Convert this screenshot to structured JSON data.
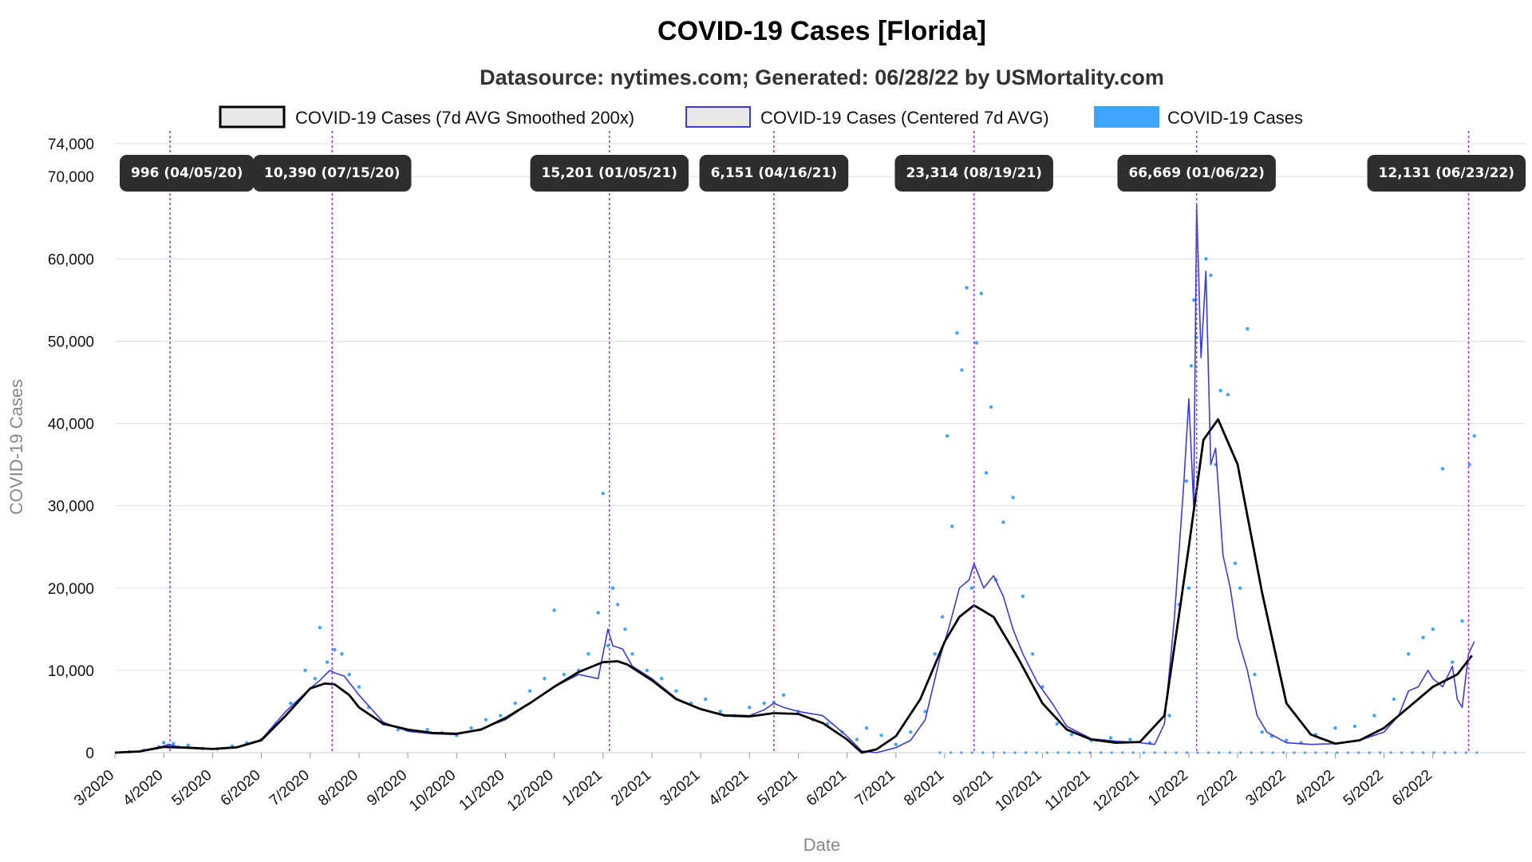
{
  "chart_data": {
    "type": "line",
    "title": "COVID-19 Cases [Florida]",
    "subtitle": "Datasource: nytimes.com; Generated: 06/28/22 by USMortality.com",
    "xlabel": "Date",
    "ylabel": "COVID-19 Cases",
    "ylim": [
      0,
      74000
    ],
    "y_ticks": [
      "0",
      "10,000",
      "20,000",
      "30,000",
      "40,000",
      "50,000",
      "60,000",
      "70,000",
      "74,000"
    ],
    "y_tick_values": [
      0,
      10000,
      20000,
      30000,
      40000,
      50000,
      60000,
      70000,
      74000
    ],
    "x_range_months": [
      0,
      28.9
    ],
    "x_ticks": [
      "3/2020",
      "4/2020",
      "5/2020",
      "6/2020",
      "7/2020",
      "8/2020",
      "9/2020",
      "10/2020",
      "11/2020",
      "12/2020",
      "1/2021",
      "2/2021",
      "3/2021",
      "4/2021",
      "5/2021",
      "6/2021",
      "7/2021",
      "8/2021",
      "9/2021",
      "10/2021",
      "11/2021",
      "12/2021",
      "1/2022",
      "2/2022",
      "3/2022",
      "4/2022",
      "5/2022",
      "6/2022"
    ],
    "x_tick_months": [
      0,
      1,
      2,
      3,
      4,
      5,
      6,
      7,
      8,
      9,
      10,
      11,
      12,
      13,
      14,
      15,
      16,
      17,
      18,
      19,
      20,
      21,
      22,
      23,
      24,
      25,
      26,
      27
    ],
    "grid": true,
    "legend": {
      "position": "top",
      "entries": [
        {
          "label": "COVID-19 Cases (7d AVG Smoothed 200x)",
          "color": "#000000",
          "fill": "#e8e8e8"
        },
        {
          "label": "COVID-19 Cases (Centered 7d AVG)",
          "color": "#3b3bdb",
          "fill": "#e8e8e8"
        },
        {
          "label": "COVID-19 Cases",
          "color": "#3da4ff",
          "fill": "#3da4ff"
        }
      ]
    },
    "colors": {
      "smoothed": "#000000",
      "centered": "#3b3bdb",
      "daily": "#3da4ff",
      "annotation_line": "#9b30ff",
      "annotation_box": "#2e2e2e"
    },
    "annotations": [
      {
        "label": "996 (04/05/20)",
        "month": 1.13
      },
      {
        "label": "10,390 (07/15/20)",
        "month": 4.45
      },
      {
        "label": "15,201 (01/05/21)",
        "month": 10.13
      },
      {
        "label": "6,151 (04/16/21)",
        "month": 13.5
      },
      {
        "label": "23,314 (08/19/21)",
        "month": 17.6
      },
      {
        "label": "66,669 (01/06/22)",
        "month": 22.16
      },
      {
        "label": "12,131 (06/23/22)",
        "month": 27.73
      }
    ],
    "series": [
      {
        "name": "COVID-19 Cases (7d AVG Smoothed 200x)",
        "x": [
          0,
          0.5,
          1,
          1.5,
          2,
          2.5,
          3,
          3.5,
          4,
          4.3,
          4.5,
          4.8,
          5,
          5.5,
          6,
          6.5,
          7,
          7.5,
          8,
          8.5,
          9,
          9.5,
          10,
          10.3,
          10.5,
          11,
          11.5,
          12,
          12.5,
          13,
          13.5,
          14,
          14.5,
          15,
          15.3,
          15.6,
          16,
          16.5,
          17,
          17.3,
          17.6,
          18,
          18.5,
          19,
          19.5,
          20,
          20.5,
          21,
          21.5,
          22,
          22.3,
          22.6,
          23,
          23.5,
          24,
          24.5,
          25,
          25.5,
          26,
          26.5,
          27,
          27.5,
          27.8
        ],
        "y": [
          0,
          150,
          700,
          600,
          450,
          650,
          1500,
          4500,
          7800,
          8400,
          8300,
          7000,
          5500,
          3500,
          2800,
          2400,
          2300,
          2800,
          4200,
          6000,
          8000,
          9800,
          11000,
          11100,
          10700,
          8800,
          6500,
          5300,
          4500,
          4400,
          4800,
          4700,
          3600,
          1600,
          0,
          400,
          2000,
          6500,
          13500,
          16500,
          17900,
          16500,
          11500,
          6000,
          2800,
          1600,
          1200,
          1300,
          4500,
          25000,
          38000,
          40500,
          35000,
          19500,
          6000,
          2200,
          1100,
          1500,
          3000,
          5500,
          8000,
          9500,
          11800
        ]
      },
      {
        "name": "COVID-19 Cases (Centered 7d AVG)",
        "x": [
          0,
          0.5,
          1,
          1.1,
          1.3,
          1.5,
          2,
          2.5,
          3,
          3.5,
          4,
          4.2,
          4.4,
          4.5,
          4.7,
          5,
          5.5,
          6,
          6.5,
          7,
          7.5,
          8,
          8.5,
          9,
          9.5,
          9.9,
          10.1,
          10.2,
          10.4,
          10.6,
          11,
          11.5,
          12,
          12.5,
          13,
          13.3,
          13.5,
          13.7,
          14,
          14.5,
          15,
          15.3,
          15.6,
          16,
          16.3,
          16.6,
          16.9,
          17.1,
          17.3,
          17.5,
          17.6,
          17.8,
          18,
          18.2,
          18.4,
          18.6,
          18.9,
          19.2,
          19.5,
          20,
          20.5,
          21,
          21.3,
          21.5,
          21.7,
          21.9,
          22,
          22.1,
          22.16,
          22.25,
          22.35,
          22.45,
          22.55,
          22.7,
          22.85,
          23,
          23.2,
          23.4,
          23.6,
          24,
          24.5,
          25,
          25.5,
          26,
          26.3,
          26.5,
          26.7,
          26.9,
          27,
          27.2,
          27.4,
          27.5,
          27.6,
          27.73,
          27.85
        ],
        "y": [
          0,
          150,
          800,
          1000,
          700,
          550,
          420,
          700,
          1600,
          5000,
          7800,
          8800,
          10000,
          9700,
          9300,
          7000,
          3700,
          2600,
          2300,
          2200,
          2900,
          4000,
          6000,
          8000,
          9500,
          9000,
          15000,
          13000,
          12600,
          10500,
          9000,
          6600,
          5300,
          4600,
          4500,
          5200,
          6000,
          5500,
          5000,
          4500,
          2000,
          200,
          0,
          600,
          1500,
          4000,
          11500,
          15500,
          20000,
          21000,
          23000,
          20000,
          21500,
          19000,
          15000,
          12000,
          8500,
          6000,
          3200,
          1700,
          1400,
          1200,
          1000,
          3500,
          16000,
          33000,
          43000,
          30000,
          66500,
          48000,
          58500,
          35000,
          37000,
          24000,
          20000,
          14000,
          10000,
          4500,
          2500,
          1200,
          1000,
          1100,
          1500,
          2500,
          4500,
          7500,
          8000,
          10000,
          9000,
          8000,
          10500,
          6500,
          5500,
          12000,
          13500
        ]
      },
      {
        "name": "COVID-19 Cases",
        "x": [
          0.3,
          0.6,
          0.9,
          1.0,
          1.1,
          1.2,
          1.3,
          1.5,
          1.8,
          2.1,
          2.4,
          2.7,
          3.0,
          3.3,
          3.6,
          3.9,
          4.1,
          4.2,
          4.35,
          4.5,
          4.65,
          4.8,
          5.0,
          5.2,
          5.5,
          5.8,
          6.1,
          6.4,
          6.7,
          7.0,
          7.3,
          7.6,
          7.9,
          8.2,
          8.5,
          8.8,
          9.0,
          9.2,
          9.5,
          9.7,
          9.9,
          10.0,
          10.1,
          10.2,
          10.3,
          10.45,
          10.6,
          10.9,
          11.2,
          11.5,
          11.8,
          12.1,
          12.4,
          12.7,
          13.0,
          13.3,
          13.5,
          13.7,
          14.0,
          14.3,
          14.6,
          14.9,
          15.2,
          15.4,
          15.7,
          16.0,
          16.3,
          16.6,
          16.8,
          16.95,
          17.05,
          17.15,
          17.25,
          17.35,
          17.45,
          17.55,
          17.65,
          17.75,
          17.85,
          17.95,
          18.05,
          18.2,
          18.4,
          18.6,
          18.8,
          19.0,
          19.3,
          19.6,
          20.0,
          20.4,
          20.8,
          21.2,
          21.6,
          21.8,
          21.95,
          22.0,
          22.05,
          22.1,
          22.15,
          22.25,
          22.35,
          22.45,
          22.55,
          22.65,
          22.8,
          22.95,
          23.05,
          23.2,
          23.35,
          23.5,
          23.7,
          24.0,
          24.3,
          24.6,
          25.0,
          25.4,
          25.8,
          26.2,
          26.5,
          26.8,
          27.0,
          27.2,
          27.4,
          27.6,
          27.75,
          27.85
        ],
        "y": [
          100,
          300,
          700,
          1200,
          900,
          1100,
          700,
          900,
          500,
          450,
          800,
          1200,
          1600,
          3500,
          6000,
          10000,
          9000,
          15200,
          11000,
          12500,
          12000,
          9500,
          8000,
          5500,
          3500,
          2800,
          2600,
          2800,
          2400,
          2100,
          3000,
          4000,
          4500,
          6000,
          7500,
          9000,
          17300,
          9500,
          10000,
          12000,
          17000,
          31500,
          13000,
          20000,
          18000,
          15000,
          12000,
          10000,
          9000,
          7500,
          6000,
          6500,
          5000,
          4500,
          5500,
          6000,
          6100,
          7000,
          5000,
          4000,
          3500,
          2500,
          1600,
          3000,
          2100,
          1000,
          2500,
          5000,
          12000,
          16500,
          38500,
          27500,
          51000,
          46500,
          56500,
          20000,
          49800,
          55800,
          34000,
          42000,
          21000,
          28000,
          31000,
          19000,
          12000,
          8000,
          3500,
          2200,
          1500,
          1800,
          1600,
          1200,
          4500,
          18000,
          33000,
          20000,
          47000,
          55000,
          50500,
          72000,
          60000,
          58000,
          35000,
          44000,
          43500,
          23000,
          20000,
          51500,
          9500,
          2500,
          2000,
          1500,
          1200,
          2200,
          3000,
          3200,
          4500,
          6500,
          12000,
          14000,
          15000,
          34500,
          11000,
          16000,
          35000,
          38500
        ]
      }
    ]
  }
}
